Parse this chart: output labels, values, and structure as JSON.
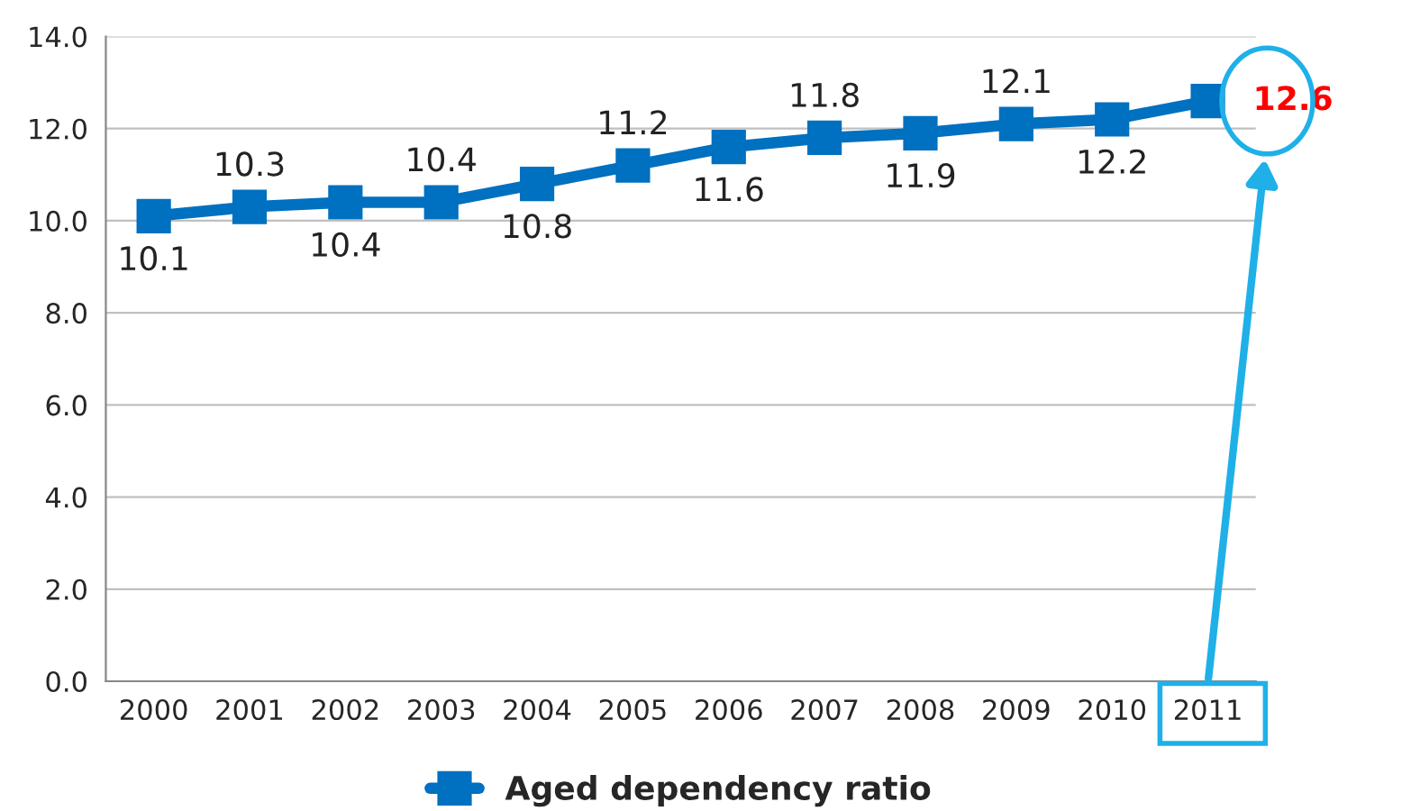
{
  "chart_data": {
    "type": "line",
    "categories": [
      "2000",
      "2001",
      "2002",
      "2003",
      "2004",
      "2005",
      "2006",
      "2007",
      "2008",
      "2009",
      "2010",
      "2011"
    ],
    "series": [
      {
        "name": "Aged dependency ratio",
        "color": "#0070c0",
        "values": [
          10.1,
          10.3,
          10.4,
          10.4,
          10.8,
          11.2,
          11.6,
          11.8,
          11.9,
          12.1,
          12.2,
          12.6
        ]
      }
    ],
    "ylim": [
      0,
      14
    ],
    "yticks": [
      {
        "value": 0,
        "label": "0.0"
      },
      {
        "value": 2,
        "label": "2.0"
      },
      {
        "value": 4,
        "label": "4.0"
      },
      {
        "value": 6,
        "label": "6.0"
      },
      {
        "value": 8,
        "label": "8.0"
      },
      {
        "value": 10,
        "label": "10.0"
      },
      {
        "value": 12,
        "label": "12.0"
      },
      {
        "value": 14,
        "label": "14.0"
      }
    ],
    "grid": "y",
    "legend": "bottom",
    "marker": "square",
    "line_style": "solid",
    "data_labels": true
  }
}
